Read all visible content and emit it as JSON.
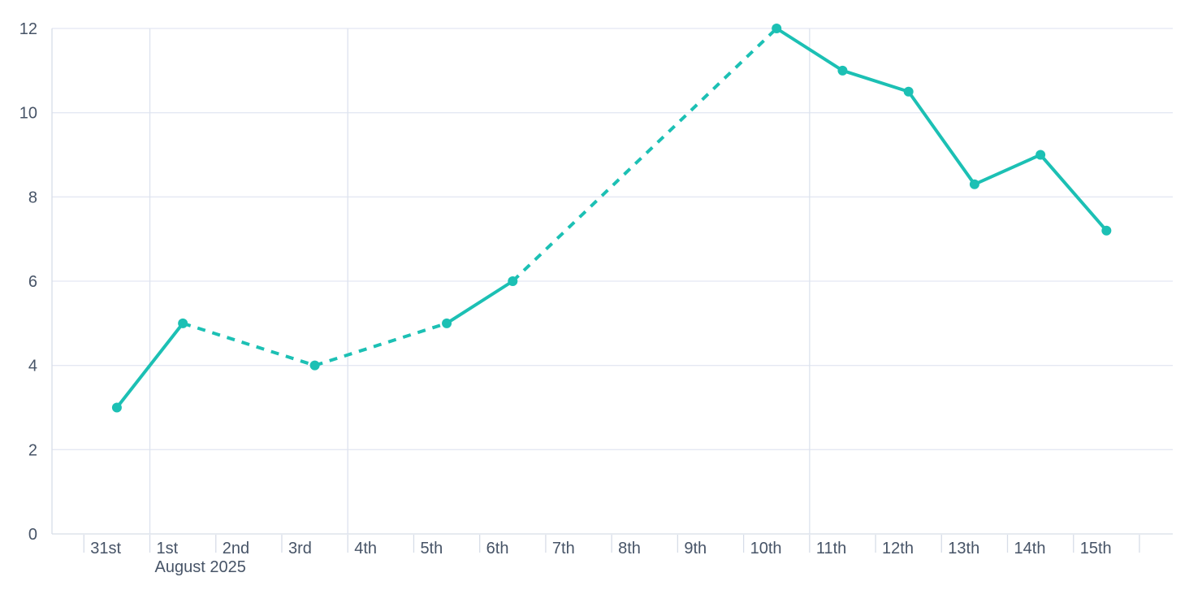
{
  "chart_data": {
    "type": "line",
    "title": "",
    "xlabel": "",
    "ylabel": "",
    "x_labels": [
      "31st",
      "1st",
      "2nd",
      "3rd",
      "4th",
      "5th",
      "6th",
      "7th",
      "8th",
      "9th",
      "10th",
      "11th",
      "12th",
      "13th",
      "14th",
      "15th"
    ],
    "x_axis_secondary_label": "August 2025",
    "x_secondary_under_label": "1st",
    "y_ticks": [
      0,
      2,
      4,
      6,
      8,
      10,
      12
    ],
    "ylim": [
      0,
      12
    ],
    "legend_position": "none",
    "grid": {
      "horizontal": true,
      "vertical_at_labels": [
        "1st",
        "4th",
        "11th"
      ]
    },
    "series": [
      {
        "name": "value",
        "marker": "circle",
        "points": [
          {
            "x": "31st",
            "y": 3
          },
          {
            "x": "1st",
            "y": 5
          },
          {
            "x": "3rd",
            "y": 4
          },
          {
            "x": "5th",
            "y": 5
          },
          {
            "x": "6th",
            "y": 6
          },
          {
            "x": "10th",
            "y": 12
          },
          {
            "x": "11th",
            "y": 11
          },
          {
            "x": "12th",
            "y": 10.5
          },
          {
            "x": "13th",
            "y": 8.3
          },
          {
            "x": "14th",
            "y": 9
          },
          {
            "x": "15th",
            "y": 7.2
          }
        ],
        "segment_style_rule": "solid between adjacent days, dashed across days with no data point (2nd, 4th, 7th, 8th, 9th)"
      }
    ],
    "colors": {
      "line": "#1cc0b4",
      "marker": "#1cc0b4",
      "grid_horizontal": "#e4e8f3",
      "grid_vertical": "#dde3ee",
      "axis_line": "#d7dde8",
      "tick": "#d7dde8",
      "label_text": "#475467",
      "background": "#ffffff"
    }
  }
}
